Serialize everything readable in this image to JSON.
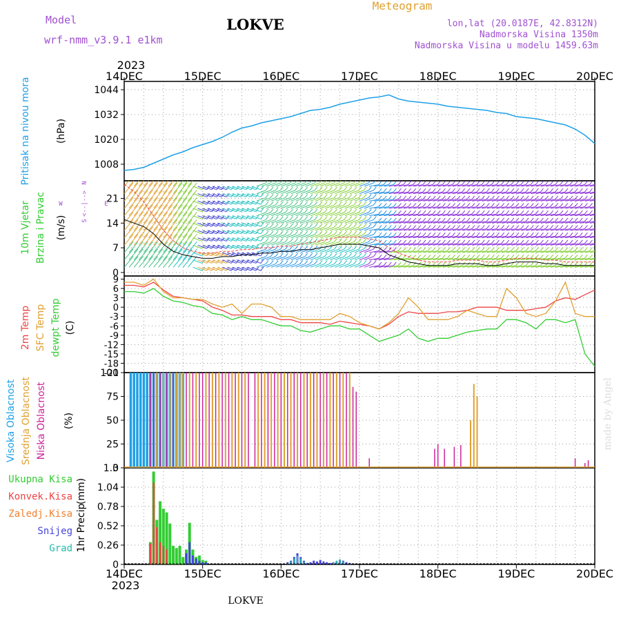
{
  "header": {
    "model_label": "Model",
    "model_name": "wrf-nmm_v3.9.1  e1km",
    "station": "LOKVE",
    "product": "Meteogram",
    "coords": "lon,lat (20.0187E, 42.8312N)",
    "elevation": "Nadmorska Visina 1350m",
    "model_elevation": "Nadmorska Visina u modelu 1459.63m"
  },
  "footer": {
    "station": "LOKVE",
    "credit": "made by Angel"
  },
  "time_axis": {
    "year": "2023",
    "ticks": [
      "14DEC",
      "15DEC",
      "16DEC",
      "17DEC",
      "18DEC",
      "19DEC",
      "20DEC"
    ]
  },
  "colors": {
    "pressure": "#1ea0e6",
    "wind_label_a": "#33cc33",
    "wind_label_b": "#33cc33",
    "temp2m": "#ee4444",
    "sfc": "#e0a030",
    "dew": "#33cc33",
    "high_cloud": "#1ea0e6",
    "mid_cloud": "#e0a030",
    "low_cloud": "#cc2299",
    "total_precip": "#33cc33",
    "conv_precip": "#ee4444",
    "frozen": "#f08030",
    "snow": "#4444dd",
    "graupel": "#22bbaa",
    "wind_arrow": "#aa55dd",
    "title_purple": "#a050d0"
  },
  "chart_data": [
    {
      "type": "line",
      "name": "pressure_panel",
      "title": "",
      "ylabel": [
        "Pritisak na nivou mora",
        "(hPa)"
      ],
      "ylim": [
        1000,
        1048
      ],
      "yticks": [
        "1044",
        "1032",
        "1020",
        "1008"
      ],
      "ytick_values": [
        1044,
        1032,
        1020,
        1008
      ],
      "x_hours": [
        0,
        3,
        6,
        9,
        12,
        15,
        18,
        21,
        24,
        27,
        30,
        33,
        36,
        39,
        42,
        45,
        48,
        51,
        54,
        57,
        60,
        63,
        66,
        69,
        72,
        75,
        78,
        81,
        84,
        87,
        90,
        93,
        96,
        99,
        102,
        105,
        108,
        111,
        114,
        117,
        120,
        123,
        126,
        129,
        132,
        135,
        138,
        141,
        144
      ],
      "series": [
        {
          "values": [
            1005,
            1005.5,
            1006.5,
            1008.5,
            1010.5,
            1012.5,
            1014,
            1016,
            1017.5,
            1019,
            1021,
            1023.5,
            1025.5,
            1026.5,
            1028,
            1029,
            1030,
            1031,
            1032.5,
            1034,
            1034.5,
            1035.5,
            1037,
            1038,
            1039,
            1040,
            1040.5,
            1041.5,
            1039.5,
            1038.5,
            1038,
            1037.5,
            1037,
            1036,
            1035.5,
            1035,
            1034.5,
            1034,
            1033,
            1032.5,
            1031,
            1030.5,
            1030,
            1029,
            1028,
            1027,
            1025,
            1022,
            1018
          ]
        }
      ]
    },
    {
      "type": "line",
      "name": "wind_panel",
      "title": "",
      "ylabel": [
        "10m Vjetar",
        "Brzina i Pravac",
        "(m/s)"
      ],
      "direction_legend": [
        "N",
        "W",
        "E",
        "S",
        "<--|-->"
      ],
      "ylim": [
        -1,
        26
      ],
      "yticks": [
        "21",
        "14",
        "7",
        "0"
      ],
      "ytick_values": [
        21,
        14,
        7,
        0
      ],
      "x_hours": [
        0,
        3,
        6,
        9,
        12,
        15,
        18,
        21,
        24,
        27,
        30,
        33,
        36,
        39,
        42,
        45,
        48,
        51,
        54,
        57,
        60,
        63,
        66,
        69,
        72,
        75,
        78,
        81,
        84,
        87,
        90,
        93,
        96,
        99,
        102,
        105,
        108,
        111,
        114,
        117,
        120,
        123,
        126,
        129,
        132,
        135,
        138,
        141,
        144
      ],
      "series": [
        {
          "name": "speed",
          "values": [
            15,
            14,
            13,
            11,
            8,
            6,
            5,
            4.5,
            4,
            4,
            4.5,
            4.5,
            5,
            5,
            5.5,
            5.5,
            6,
            6,
            6.5,
            6.5,
            7,
            7.5,
            8,
            8,
            8,
            7.5,
            7,
            5,
            4,
            3,
            2.5,
            2,
            2,
            2,
            2.5,
            2.5,
            2.5,
            2,
            2,
            2.5,
            3,
            3,
            3,
            2.5,
            2.5,
            2,
            2,
            2,
            2
          ]
        },
        {
          "name": "gust",
          "values": [
            25,
            23,
            20,
            16,
            12,
            9,
            7,
            6,
            5.5,
            5.5,
            6,
            6,
            6.5,
            6.5,
            7,
            7,
            7.5,
            7.5,
            8,
            8.5,
            9,
            9.5,
            10,
            10,
            10,
            9.5,
            9,
            7,
            5.5,
            4.5,
            3.5,
            3,
            3,
            3,
            3.5,
            3.5,
            3.5,
            3,
            3,
            3.5,
            4,
            4,
            4,
            3.5,
            3.5,
            3,
            3,
            3,
            3
          ]
        }
      ]
    },
    {
      "type": "line",
      "name": "temperature_panel",
      "title": "",
      "ylabel": [
        "2m Temp",
        "SFC Temp",
        "dewpt Temp",
        "(C)"
      ],
      "ylim": [
        -21,
        10
      ],
      "yticks": [
        "9",
        "6",
        "3",
        "0",
        "-3",
        "-6",
        "-9",
        "-12",
        "-15",
        "-18",
        "-21"
      ],
      "ytick_values": [
        9,
        6,
        3,
        0,
        -3,
        -6,
        -9,
        -12,
        -15,
        -18,
        -21
      ],
      "x_hours": [
        0,
        3,
        6,
        9,
        12,
        15,
        18,
        21,
        24,
        27,
        30,
        33,
        36,
        39,
        42,
        45,
        48,
        51,
        54,
        57,
        60,
        63,
        66,
        69,
        72,
        75,
        78,
        81,
        84,
        87,
        90,
        93,
        96,
        99,
        102,
        105,
        108,
        111,
        114,
        117,
        120,
        123,
        126,
        129,
        132,
        135,
        138,
        141,
        144
      ],
      "series": [
        {
          "name": "2m Temp",
          "values": [
            7,
            7,
            6.5,
            8,
            5.5,
            3.5,
            3,
            2.5,
            2,
            0,
            -1,
            -2.5,
            -2.5,
            -3,
            -3,
            -3,
            -4,
            -4,
            -5,
            -5,
            -5,
            -5.5,
            -4.5,
            -5,
            -5.5,
            -6,
            -7,
            -5.5,
            -3,
            -1.5,
            -2,
            -2,
            -2,
            -1.5,
            -1.5,
            -1,
            0,
            0,
            0,
            -1,
            -1,
            -1,
            -0.5,
            0,
            2,
            3,
            2.5,
            4,
            5.5
          ]
        },
        {
          "name": "SFC Temp",
          "values": [
            8,
            8,
            7,
            9,
            5,
            3,
            3,
            2.5,
            2.5,
            1,
            0,
            1,
            -2,
            1,
            1,
            0,
            -3,
            -3,
            -4,
            -4,
            -4,
            -4,
            -2,
            -3,
            -5,
            -6,
            -7,
            -5,
            -2,
            3,
            0,
            -4,
            -4,
            -4,
            -3,
            -1,
            -2,
            -3,
            -3,
            6,
            3,
            -2,
            -3,
            -2,
            2,
            8,
            -2,
            -3,
            -3
          ]
        },
        {
          "name": "dewpt Temp",
          "values": [
            5,
            5,
            4.5,
            6,
            3.5,
            2,
            1.5,
            0.5,
            0,
            -2,
            -2.5,
            -4,
            -3,
            -4,
            -4,
            -5,
            -6,
            -6,
            -7.5,
            -8,
            -7,
            -6,
            -6,
            -7,
            -7,
            -9,
            -11,
            -10,
            -9,
            -7,
            -10,
            -11,
            -10,
            -10,
            -9,
            -8,
            -7.5,
            -7,
            -7,
            -4,
            -4,
            -5,
            -7,
            -4,
            -4,
            -5,
            -4,
            -15,
            -19
          ]
        }
      ]
    },
    {
      "type": "bar",
      "name": "cloud_panel",
      "title": "",
      "ylabel": [
        "Visoka Oblacnost",
        "Srednja Oblacnost",
        "Niska Oblacnost",
        "(%)"
      ],
      "ylim": [
        0,
        100
      ],
      "yticks": [
        "100",
        "75",
        "50",
        "25",
        "0"
      ],
      "ytick_values": [
        100,
        75,
        50,
        25,
        0
      ],
      "series": [
        {
          "name": "Visoka Oblacnost",
          "x_hours": [
            2,
            3,
            4,
            5,
            6,
            7,
            8,
            9,
            10,
            11,
            12,
            13,
            14,
            15,
            16,
            17,
            18
          ],
          "values": [
            100,
            100,
            100,
            100,
            100,
            100,
            100,
            100,
            100,
            100,
            100,
            100,
            100,
            100,
            100,
            100,
            100
          ]
        },
        {
          "name": "Srednja Oblacnost",
          "x_hours": [
            10,
            12,
            14,
            16,
            17,
            18,
            20,
            22,
            25,
            27,
            29,
            31,
            33,
            35,
            37,
            41,
            43,
            45,
            47,
            49,
            51,
            53,
            55,
            57,
            59,
            61,
            63,
            65,
            67,
            69,
            106,
            107,
            108
          ],
          "values": [
            100,
            100,
            100,
            100,
            100,
            100,
            100,
            100,
            100,
            100,
            100,
            100,
            100,
            100,
            100,
            100,
            100,
            100,
            100,
            100,
            100,
            100,
            100,
            100,
            100,
            100,
            100,
            100,
            100,
            100,
            50,
            88,
            75
          ]
        },
        {
          "name": "Niska Oblacnost",
          "x_hours": [
            8,
            9,
            11,
            13,
            15,
            19,
            21,
            23,
            24,
            26,
            28,
            30,
            32,
            34,
            36,
            38,
            40,
            42,
            44,
            46,
            48,
            50,
            52,
            54,
            56,
            58,
            60,
            62,
            64,
            66,
            68,
            70,
            71,
            75,
            95,
            96,
            98,
            101,
            103,
            138,
            141,
            142
          ],
          "values": [
            100,
            100,
            100,
            100,
            100,
            100,
            100,
            100,
            100,
            100,
            100,
            100,
            100,
            100,
            100,
            100,
            100,
            100,
            100,
            100,
            100,
            100,
            100,
            100,
            100,
            100,
            100,
            100,
            100,
            100,
            100,
            85,
            80,
            10,
            20,
            25,
            20,
            22,
            24,
            10,
            5,
            8
          ]
        }
      ]
    },
    {
      "type": "bar",
      "name": "precip_panel",
      "title": "",
      "ylabel": [
        "1hr Precip",
        "(mm)"
      ],
      "legend": [
        "Ukupna Kisa",
        "Konvek.Kisa",
        "Zaledj.Kisa",
        "Snijeg",
        "Grad"
      ],
      "ylim": [
        0,
        1.3
      ],
      "yticks": [
        "1.3",
        "1.04",
        "0.78",
        "0.52",
        "0.26",
        "0"
      ],
      "ytick_values": [
        1.3,
        1.04,
        0.78,
        0.52,
        0.26,
        0
      ],
      "series": [
        {
          "name": "Ukupna Kisa",
          "x_hours": [
            8,
            9,
            10,
            11,
            12,
            13,
            14,
            15,
            16,
            17,
            18,
            19,
            20,
            21,
            22,
            23,
            24,
            25
          ],
          "values": [
            0.3,
            1.25,
            0.6,
            0.85,
            0.75,
            0.7,
            0.55,
            0.25,
            0.22,
            0.25,
            0.1,
            0.2,
            0.56,
            0.2,
            0.1,
            0.12,
            0.06,
            0.05
          ]
        },
        {
          "name": "Konvek.Kisa",
          "x_hours": [
            8,
            9,
            10,
            11,
            12,
            13
          ],
          "values": [
            0.28,
            1.1,
            0.5,
            0.3,
            0.25,
            0.2
          ]
        },
        {
          "name": "Snijeg",
          "x_hours": [
            19,
            20,
            21,
            22,
            23,
            24,
            25,
            50,
            51,
            52,
            53,
            54,
            55,
            56,
            57,
            58,
            59,
            60,
            61,
            62,
            63,
            64,
            65,
            66,
            67,
            68,
            69
          ],
          "values": [
            0.15,
            0.3,
            0.12,
            0.08,
            0.05,
            0.03,
            0.03,
            0.03,
            0.05,
            0.1,
            0.15,
            0.1,
            0.05,
            0.02,
            0.03,
            0.05,
            0.04,
            0.06,
            0.04,
            0.03,
            0.02,
            0.03,
            0.04,
            0.06,
            0.05,
            0.03,
            0.02
          ]
        },
        {
          "name": "Grad",
          "x_hours": [
            50,
            51,
            52,
            53,
            54,
            55,
            64,
            65,
            66,
            67
          ],
          "values": [
            0.02,
            0.04,
            0.08,
            0.12,
            0.08,
            0.04,
            0.03,
            0.05,
            0.07,
            0.04
          ]
        }
      ]
    }
  ]
}
